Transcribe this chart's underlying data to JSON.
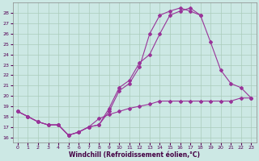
{
  "background_color": "#cce8e4",
  "grid_color": "#aaccbb",
  "line_color": "#993399",
  "xlabel": "Windchill (Refroidissement éolien,°C)",
  "xlim": [
    -0.5,
    23.5
  ],
  "ylim": [
    15.5,
    29.0
  ],
  "yticks": [
    16,
    17,
    18,
    19,
    20,
    21,
    22,
    23,
    24,
    25,
    26,
    27,
    28
  ],
  "xticks": [
    0,
    1,
    2,
    3,
    4,
    5,
    6,
    7,
    8,
    9,
    10,
    11,
    12,
    13,
    14,
    15,
    16,
    17,
    18,
    19,
    20,
    21,
    22,
    23
  ],
  "curve1_x": [
    0,
    1,
    2,
    3,
    4,
    5,
    6,
    7,
    8,
    9,
    10,
    11,
    12,
    13,
    14,
    15,
    16,
    17,
    18
  ],
  "curve1_y": [
    18.5,
    18.0,
    17.5,
    17.2,
    17.2,
    16.2,
    16.5,
    17.0,
    17.2,
    18.5,
    20.5,
    21.2,
    22.8,
    26.0,
    27.8,
    28.2,
    28.5,
    28.2,
    27.8
  ],
  "curve2_x": [
    0,
    1,
    2,
    3,
    4,
    5,
    6,
    7,
    8,
    9,
    10,
    11,
    12,
    13,
    14,
    15,
    16,
    17,
    18,
    19,
    20,
    21,
    22,
    23
  ],
  "curve2_y": [
    18.5,
    18.0,
    17.5,
    17.2,
    17.2,
    16.2,
    16.5,
    17.0,
    17.2,
    18.8,
    20.8,
    21.5,
    23.2,
    24.0,
    26.0,
    27.8,
    28.2,
    28.5,
    27.8,
    25.2,
    22.5,
    21.2,
    20.8,
    19.8
  ],
  "curve3_x": [
    0,
    1,
    2,
    3,
    4,
    5,
    6,
    7,
    8,
    9,
    10,
    11,
    12,
    13,
    14,
    15,
    16,
    17,
    18,
    19,
    20,
    21,
    22,
    23
  ],
  "curve3_y": [
    18.5,
    18.0,
    17.5,
    17.2,
    17.2,
    16.2,
    16.5,
    17.0,
    17.8,
    18.2,
    18.5,
    18.8,
    19.0,
    19.2,
    19.5,
    19.5,
    19.5,
    19.5,
    19.5,
    19.5,
    19.5,
    19.5,
    19.8,
    19.8
  ]
}
